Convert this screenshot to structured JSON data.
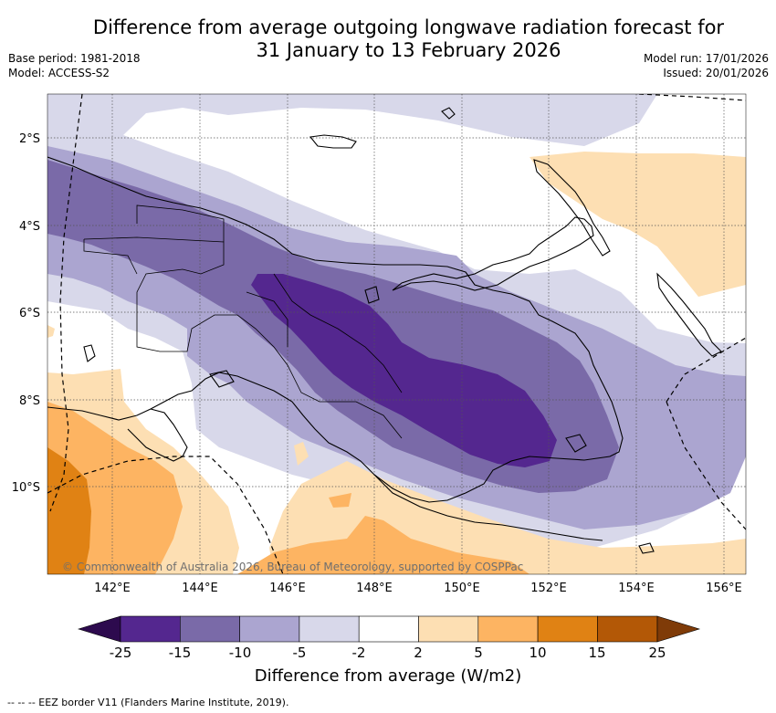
{
  "title_line1": "Difference from average outgoing longwave radiation forecast for",
  "title_line2": "31 January to 13 February 2026",
  "meta": {
    "base_period": "Base period: 1981-2018",
    "model": "Model: ACCESS-S2",
    "model_run": "Model run: 17/01/2026",
    "issued": "Issued: 20/01/2026"
  },
  "map": {
    "lat_labels": [
      "2°S",
      "4°S",
      "6°S",
      "8°S",
      "10°S"
    ],
    "lon_labels": [
      "142°E",
      "144°E",
      "146°E",
      "148°E",
      "150°E",
      "152°E",
      "154°E",
      "156°E"
    ],
    "copyright": "© Commonwealth of Australia 2026, Bureau of Meteorology, supported by COSPPac"
  },
  "colorbar": {
    "title": "Difference from average (W/m2)",
    "ticks": [
      "-25",
      "-15",
      "-10",
      "-5",
      "-2",
      "2",
      "5",
      "10",
      "15",
      "25"
    ],
    "colors": {
      "under": "#2d0a4e",
      "b1": "#54278f",
      "b2": "#7a6aa8",
      "b3": "#aba5d0",
      "b4": "#d8d8ea",
      "b5": "#ffffff",
      "b6": "#fddfb3",
      "b7": "#fdb462",
      "b8": "#e08214",
      "b9": "#b35806",
      "over": "#7f3b08"
    }
  },
  "footnote": "--  --  -- EEZ border V11 (Flanders Marine Institute, 2019)."
}
